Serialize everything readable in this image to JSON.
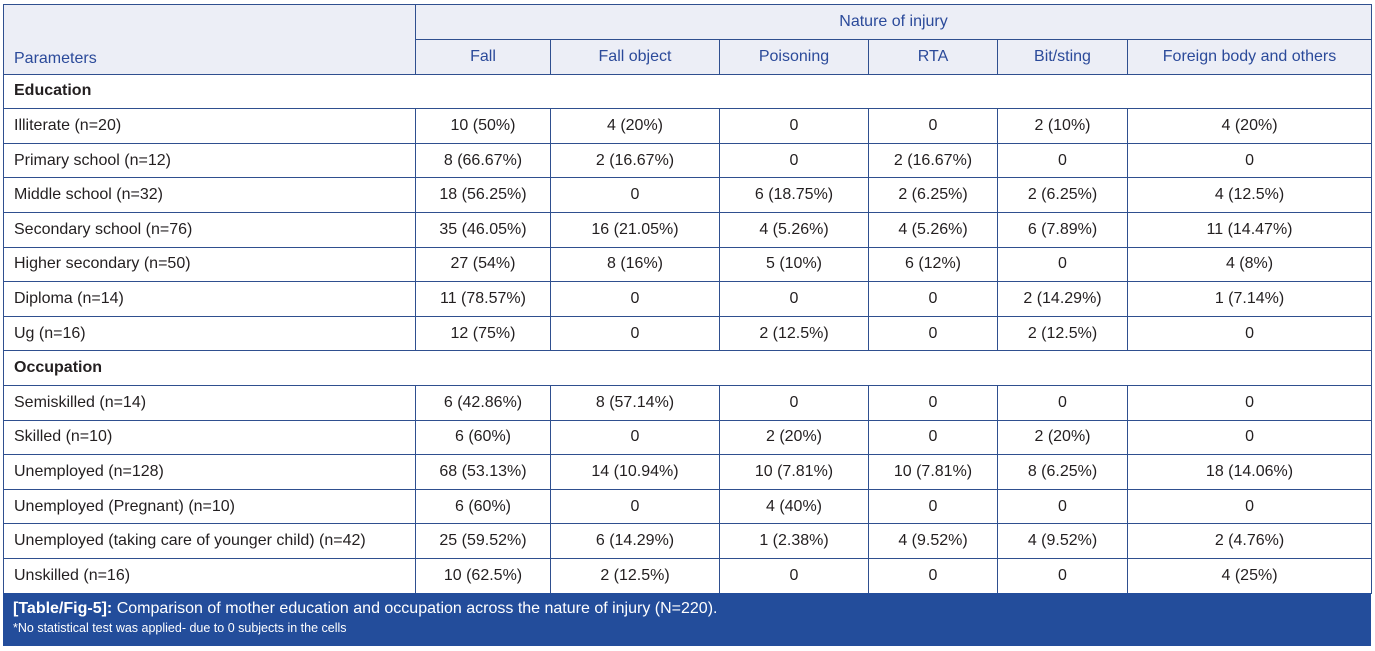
{
  "table": {
    "group_header": "Nature of injury",
    "param_header": "Parameters",
    "columns": [
      "Fall",
      "Fall object",
      "Poisoning",
      "RTA",
      "Bit/sting",
      "Foreign body and others"
    ],
    "sections": [
      {
        "title": "Education",
        "rows": [
          {
            "label": "Illiterate (n=20)",
            "values": [
              "10 (50%)",
              "4 (20%)",
              "0",
              "0",
              "2 (10%)",
              "4 (20%)"
            ]
          },
          {
            "label": "Primary school (n=12)",
            "values": [
              "8 (66.67%)",
              "2 (16.67%)",
              "0",
              "2 (16.67%)",
              "0",
              "0"
            ]
          },
          {
            "label": "Middle school (n=32)",
            "values": [
              "18 (56.25%)",
              "0",
              "6 (18.75%)",
              "2 (6.25%)",
              "2 (6.25%)",
              "4 (12.5%)"
            ]
          },
          {
            "label": "Secondary school (n=76)",
            "values": [
              "35 (46.05%)",
              "16 (21.05%)",
              "4 (5.26%)",
              "4 (5.26%)",
              "6 (7.89%)",
              "11 (14.47%)"
            ]
          },
          {
            "label": "Higher secondary (n=50)",
            "values": [
              "27 (54%)",
              "8 (16%)",
              "5 (10%)",
              "6 (12%)",
              "0",
              "4 (8%)"
            ]
          },
          {
            "label": "Diploma (n=14)",
            "values": [
              "11 (78.57%)",
              "0",
              "0",
              "0",
              "2 (14.29%)",
              "1 (7.14%)"
            ]
          },
          {
            "label": "Ug (n=16)",
            "values": [
              "12 (75%)",
              "0",
              "2 (12.5%)",
              "0",
              "2 (12.5%)",
              "0"
            ]
          }
        ]
      },
      {
        "title": "Occupation",
        "rows": [
          {
            "label": "Semiskilled (n=14)",
            "values": [
              "6 (42.86%)",
              "8 (57.14%)",
              "0",
              "0",
              "0",
              "0"
            ]
          },
          {
            "label": "Skilled (n=10)",
            "values": [
              "6 (60%)",
              "0",
              "2 (20%)",
              "0",
              "2 (20%)",
              "0"
            ]
          },
          {
            "label": "Unemployed (n=128)",
            "values": [
              "68 (53.13%)",
              "14 (10.94%)",
              "10 (7.81%)",
              "10 (7.81%)",
              "8 (6.25%)",
              "18 (14.06%)"
            ]
          },
          {
            "label": "Unemployed (Pregnant) (n=10)",
            "values": [
              "6 (60%)",
              "0",
              "4 (40%)",
              "0",
              "0",
              "0"
            ]
          },
          {
            "label": "Unemployed (taking care of younger child) (n=42)",
            "values": [
              "25 (59.52%)",
              "6 (14.29%)",
              "1 (2.38%)",
              "4 (9.52%)",
              "4 (9.52%)",
              "2 (4.76%)"
            ]
          },
          {
            "label": "Unskilled (n=16)",
            "values": [
              "10 (62.5%)",
              "2 (12.5%)",
              "0",
              "0",
              "0",
              "4 (25%)"
            ]
          }
        ]
      }
    ]
  },
  "caption": {
    "label": "[Table/Fig-5]:",
    "text": " Comparison of mother education and occupation across the nature of injury (N=220).",
    "note": "*No statistical test was applied- due to 0 subjects in the cells"
  },
  "colors": {
    "header_bg": "#eceef6",
    "header_text": "#2b4a9a",
    "border": "#2f4f8f",
    "caption_bg": "#234d9b"
  }
}
